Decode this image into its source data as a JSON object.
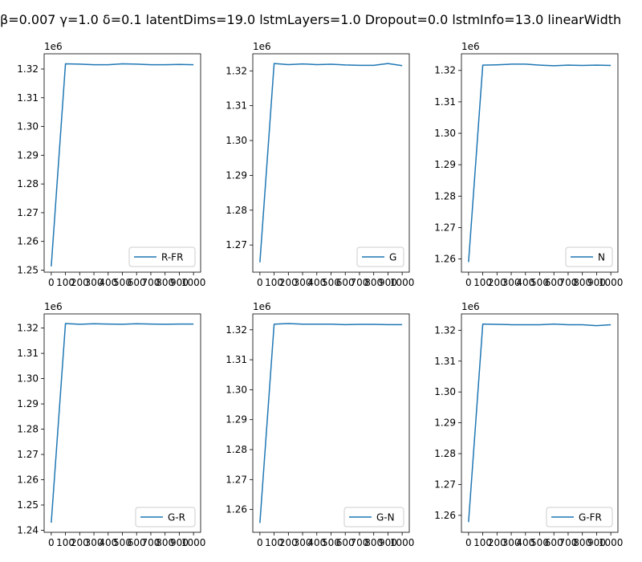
{
  "suptitle": "β=0.007 γ=1.0 δ=0.1 latentDims=19.0 lstmLayers=1.0 Dropout=0.0 lstmInfo=13.0 linearWidth",
  "colors": {
    "line": "#1f77b4",
    "axes": "#000000",
    "background": "#ffffff"
  },
  "chart_data": [
    {
      "type": "line",
      "offset_label": "1e6",
      "x": [
        0,
        100,
        200,
        300,
        400,
        500,
        600,
        700,
        800,
        900,
        1000
      ],
      "xticks": [
        0,
        100,
        200,
        300,
        400,
        500,
        600,
        700,
        800,
        900,
        1000
      ],
      "xlim": [
        -50,
        1050
      ],
      "ylim": [
        1.2493,
        1.3253
      ],
      "yticks": [
        1.25,
        1.26,
        1.27,
        1.28,
        1.29,
        1.3,
        1.31,
        1.32
      ],
      "ytick_labels": [
        "1.25",
        "1.26",
        "1.27",
        "1.28",
        "1.29",
        "1.30",
        "1.31",
        "1.32"
      ],
      "legend": "lower right",
      "series": [
        {
          "name": "R-FR",
          "values": [
            1.2513,
            1.3218,
            1.3217,
            1.3215,
            1.3215,
            1.3218,
            1.3217,
            1.3215,
            1.3215,
            1.3216,
            1.3215
          ]
        }
      ]
    },
    {
      "type": "line",
      "offset_label": "1e6",
      "x": [
        0,
        100,
        200,
        300,
        400,
        500,
        600,
        700,
        800,
        900,
        1000
      ],
      "xticks": [
        0,
        100,
        200,
        300,
        400,
        500,
        600,
        700,
        800,
        900,
        1000
      ],
      "xlim": [
        -50,
        1050
      ],
      "ylim": [
        1.2622,
        1.3249
      ],
      "yticks": [
        1.27,
        1.28,
        1.29,
        1.3,
        1.31,
        1.32
      ],
      "ytick_labels": [
        "1.27",
        "1.28",
        "1.29",
        "1.30",
        "1.31",
        "1.32"
      ],
      "legend": "lower right",
      "series": [
        {
          "name": "G",
          "values": [
            1.265,
            1.3221,
            1.3218,
            1.322,
            1.3218,
            1.3219,
            1.3217,
            1.3216,
            1.3216,
            1.3221,
            1.3215
          ]
        }
      ]
    },
    {
      "type": "line",
      "offset_label": "1e6",
      "x": [
        0,
        100,
        200,
        300,
        400,
        500,
        600,
        700,
        800,
        900,
        1000
      ],
      "xticks": [
        0,
        100,
        200,
        300,
        400,
        500,
        600,
        700,
        800,
        900,
        1000
      ],
      "xlim": [
        -50,
        1050
      ],
      "ylim": [
        1.2558,
        1.3253
      ],
      "yticks": [
        1.26,
        1.27,
        1.28,
        1.29,
        1.3,
        1.31,
        1.32
      ],
      "ytick_labels": [
        "1.26",
        "1.27",
        "1.28",
        "1.29",
        "1.30",
        "1.31",
        "1.32"
      ],
      "legend": "lower right",
      "series": [
        {
          "name": "N",
          "values": [
            1.259,
            1.3217,
            1.3218,
            1.322,
            1.322,
            1.3217,
            1.3215,
            1.3217,
            1.3216,
            1.3217,
            1.3216
          ]
        }
      ]
    },
    {
      "type": "line",
      "offset_label": "1e6",
      "x": [
        0,
        100,
        200,
        300,
        400,
        500,
        600,
        700,
        800,
        900,
        1000
      ],
      "xticks": [
        0,
        100,
        200,
        300,
        400,
        500,
        600,
        700,
        800,
        900,
        1000
      ],
      "xlim": [
        -50,
        1050
      ],
      "ylim": [
        1.2392,
        1.3256
      ],
      "yticks": [
        1.24,
        1.25,
        1.26,
        1.27,
        1.28,
        1.29,
        1.3,
        1.31,
        1.32
      ],
      "ytick_labels": [
        "1.24",
        "1.25",
        "1.26",
        "1.27",
        "1.28",
        "1.29",
        "1.30",
        "1.31",
        "1.32"
      ],
      "legend": "lower right",
      "series": [
        {
          "name": "G-R",
          "values": [
            1.243,
            1.3218,
            1.3215,
            1.3217,
            1.3216,
            1.3215,
            1.3217,
            1.3216,
            1.3215,
            1.3216,
            1.3216
          ]
        }
      ]
    },
    {
      "type": "line",
      "offset_label": "1e6",
      "x": [
        0,
        100,
        200,
        300,
        400,
        500,
        600,
        700,
        800,
        900,
        1000
      ],
      "xticks": [
        0,
        100,
        200,
        300,
        400,
        500,
        600,
        700,
        800,
        900,
        1000
      ],
      "xlim": [
        -50,
        1050
      ],
      "ylim": [
        1.2524,
        1.3253
      ],
      "yticks": [
        1.26,
        1.27,
        1.28,
        1.29,
        1.3,
        1.31,
        1.32
      ],
      "ytick_labels": [
        "1.26",
        "1.27",
        "1.28",
        "1.29",
        "1.30",
        "1.31",
        "1.32"
      ],
      "legend": "lower right",
      "series": [
        {
          "name": "G-N",
          "values": [
            1.2555,
            1.3219,
            1.3221,
            1.3219,
            1.3219,
            1.3219,
            1.3217,
            1.3218,
            1.3218,
            1.3217,
            1.3217
          ]
        }
      ]
    },
    {
      "type": "line",
      "offset_label": "1e6",
      "x": [
        0,
        100,
        200,
        300,
        400,
        500,
        600,
        700,
        800,
        900,
        1000
      ],
      "xticks": [
        0,
        100,
        200,
        300,
        400,
        500,
        600,
        700,
        800,
        900,
        1000
      ],
      "xlim": [
        -50,
        1050
      ],
      "ylim": [
        1.2545,
        1.3253
      ],
      "yticks": [
        1.26,
        1.27,
        1.28,
        1.29,
        1.3,
        1.31,
        1.32
      ],
      "ytick_labels": [
        "1.26",
        "1.27",
        "1.28",
        "1.29",
        "1.30",
        "1.31",
        "1.32"
      ],
      "legend": "lower right",
      "series": [
        {
          "name": "G-FR",
          "values": [
            1.2578,
            1.322,
            1.3219,
            1.3218,
            1.3218,
            1.3218,
            1.322,
            1.3218,
            1.3218,
            1.3215,
            1.3218
          ]
        }
      ]
    }
  ]
}
